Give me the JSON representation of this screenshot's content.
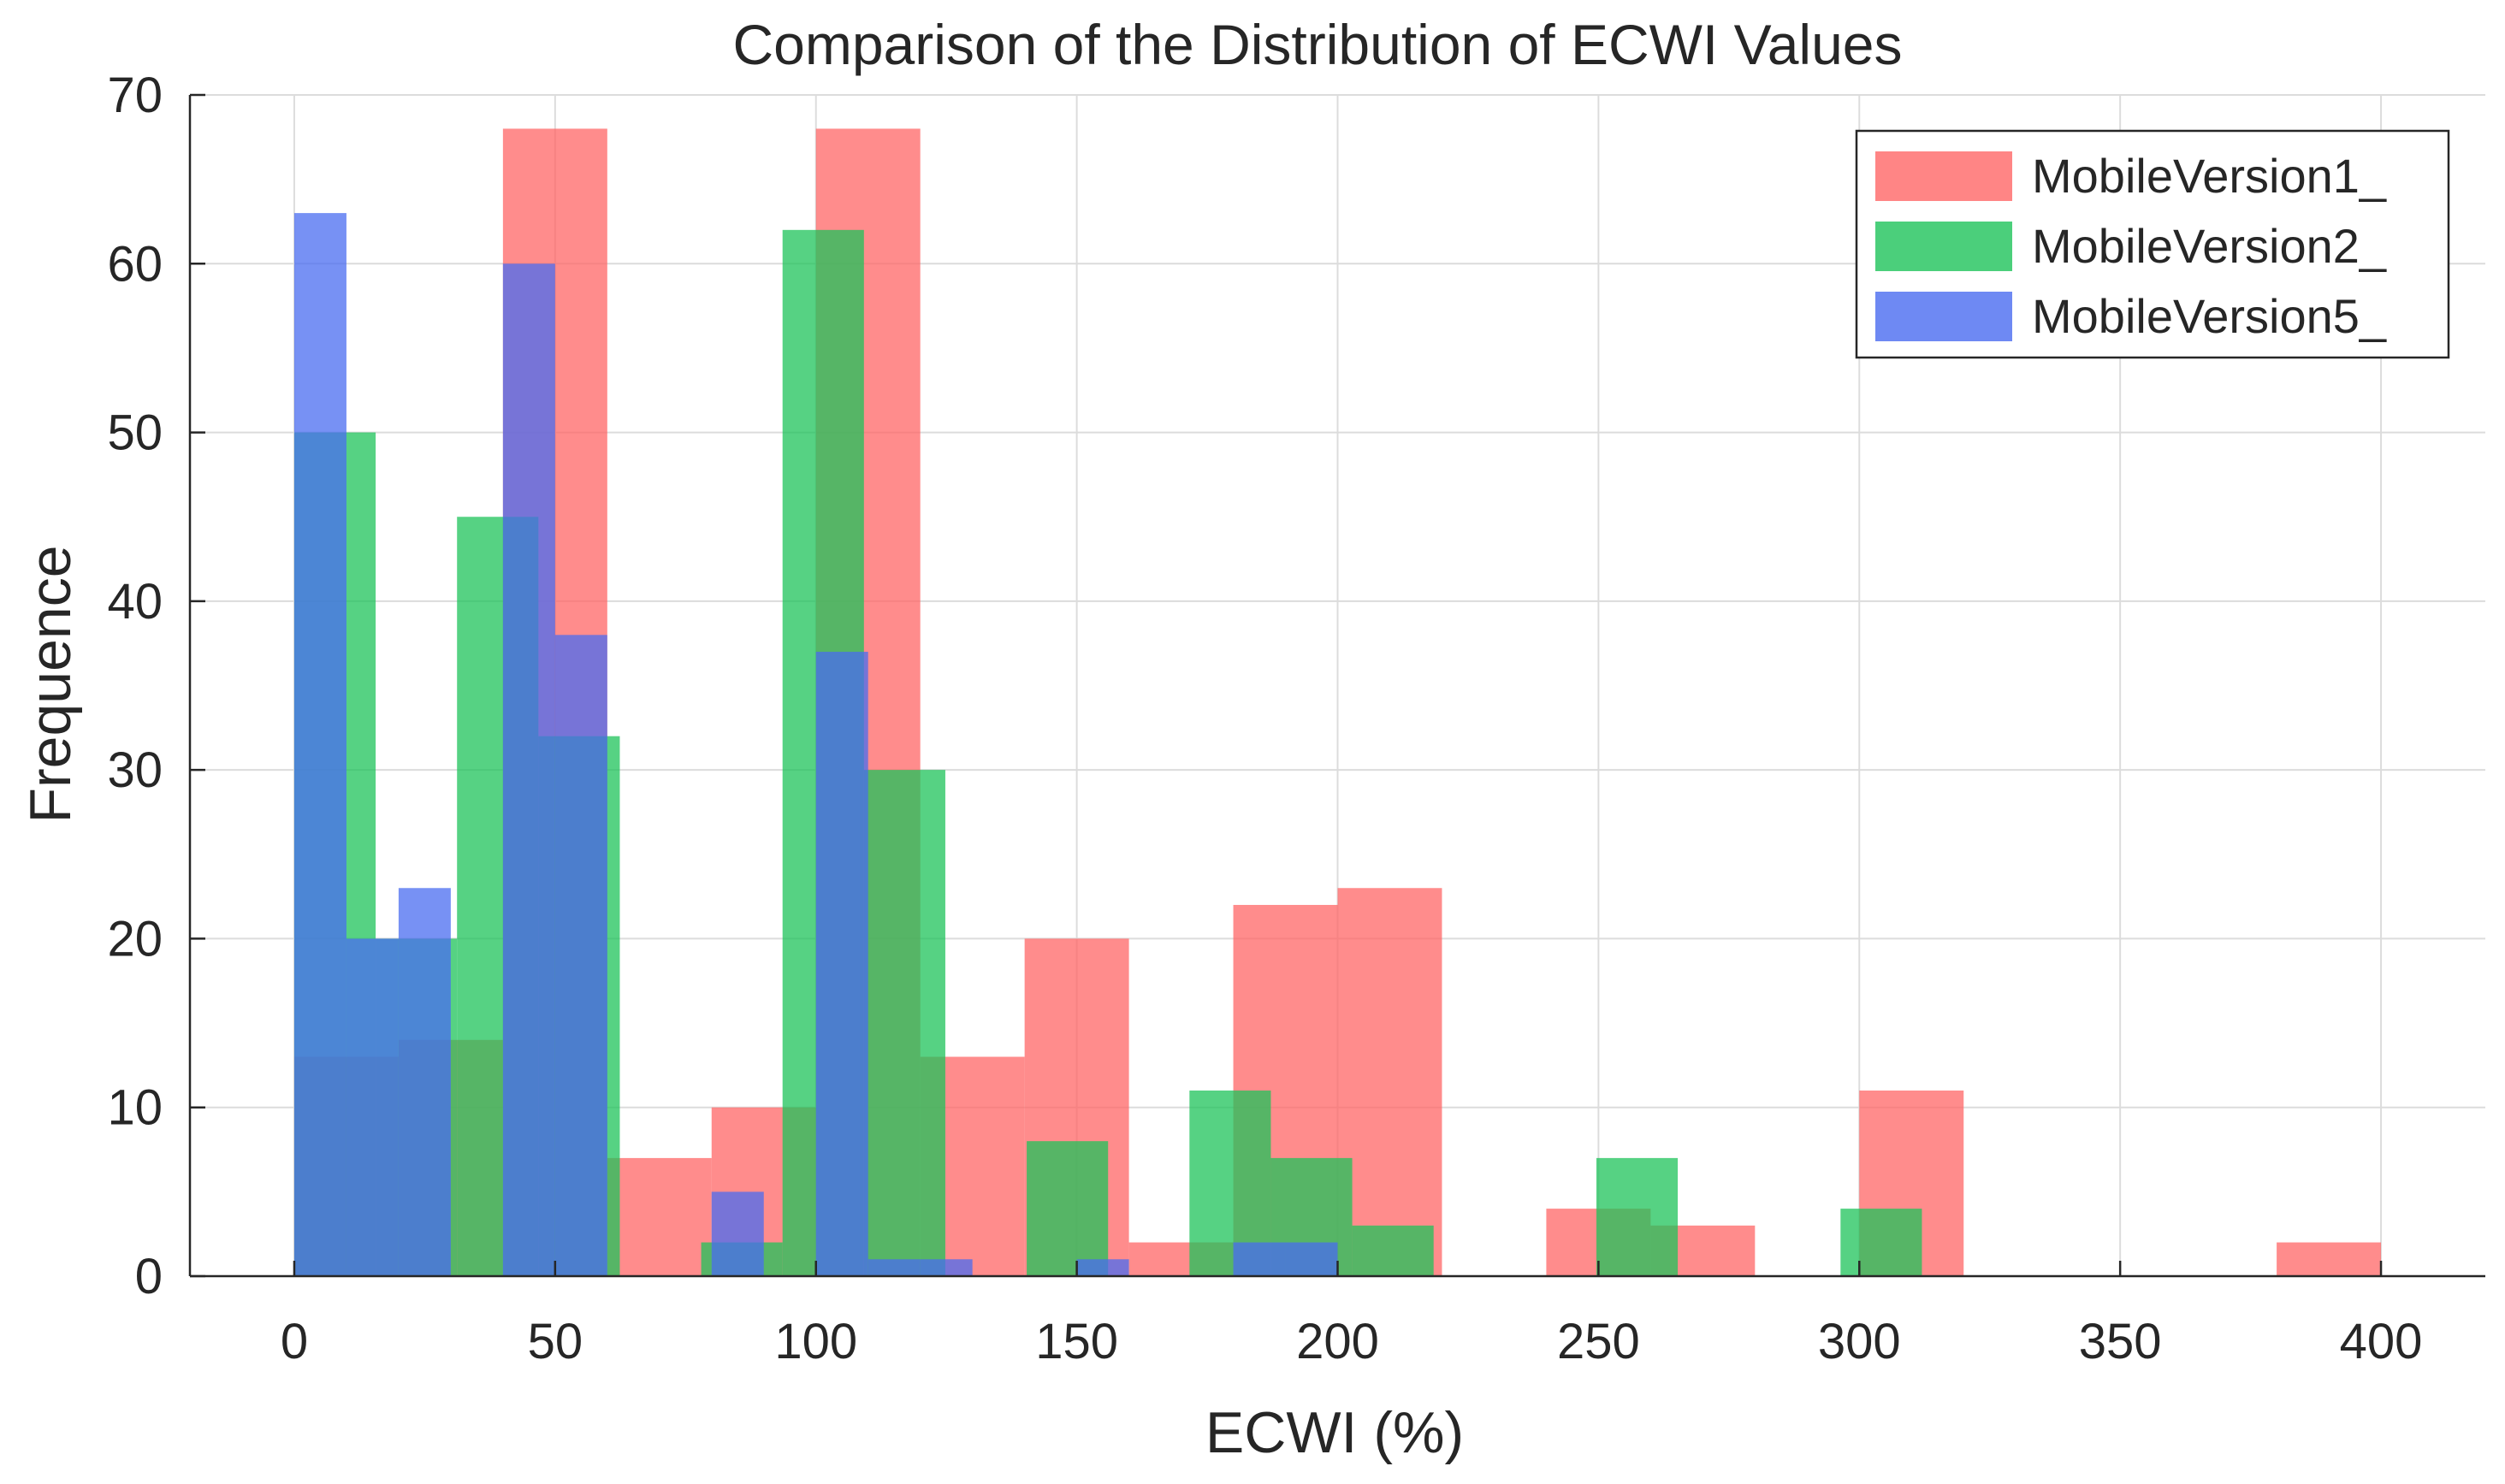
{
  "chart_data": {
    "type": "histogram",
    "title": "Comparison of the Distribution of ECWI Values",
    "xlabel": "ECWI (%)",
    "ylabel": "Frequence",
    "xlim": [
      -20,
      420
    ],
    "ylim": [
      0,
      70
    ],
    "xticks": [
      0,
      50,
      100,
      150,
      200,
      250,
      300,
      350,
      400
    ],
    "yticks": [
      0,
      10,
      20,
      30,
      40,
      50,
      60,
      70
    ],
    "grid": true,
    "legend_position": "top-right",
    "series": [
      {
        "name": "MobileVersion1_",
        "color": "#ff6666",
        "bins": [
          {
            "x0": 0,
            "x1": 20,
            "count": 13
          },
          {
            "x0": 20,
            "x1": 40,
            "count": 14
          },
          {
            "x0": 40,
            "x1": 60,
            "count": 68
          },
          {
            "x0": 60,
            "x1": 80,
            "count": 7
          },
          {
            "x0": 80,
            "x1": 100,
            "count": 10
          },
          {
            "x0": 100,
            "x1": 120,
            "count": 68
          },
          {
            "x0": 120,
            "x1": 140,
            "count": 13
          },
          {
            "x0": 140,
            "x1": 160,
            "count": 20
          },
          {
            "x0": 160,
            "x1": 180,
            "count": 2
          },
          {
            "x0": 180,
            "x1": 200,
            "count": 22
          },
          {
            "x0": 200,
            "x1": 220,
            "count": 23
          },
          {
            "x0": 220,
            "x1": 240,
            "count": 0
          },
          {
            "x0": 240,
            "x1": 260,
            "count": 4
          },
          {
            "x0": 260,
            "x1": 280,
            "count": 3
          },
          {
            "x0": 280,
            "x1": 300,
            "count": 0
          },
          {
            "x0": 300,
            "x1": 320,
            "count": 11
          },
          {
            "x0": 380,
            "x1": 400,
            "count": 2
          }
        ]
      },
      {
        "name": "MobileVersion2_",
        "color": "#1ec35a",
        "bins": [
          {
            "x0": 0,
            "x1": 15.6,
            "count": 50
          },
          {
            "x0": 15.6,
            "x1": 31.2,
            "count": 20
          },
          {
            "x0": 31.2,
            "x1": 46.8,
            "count": 45
          },
          {
            "x0": 46.8,
            "x1": 62.4,
            "count": 32
          },
          {
            "x0": 62.4,
            "x1": 78,
            "count": 0
          },
          {
            "x0": 78,
            "x1": 93.6,
            "count": 2
          },
          {
            "x0": 93.6,
            "x1": 109.2,
            "count": 62
          },
          {
            "x0": 109.2,
            "x1": 124.8,
            "count": 30
          },
          {
            "x0": 124.8,
            "x1": 140.4,
            "count": 0
          },
          {
            "x0": 140.4,
            "x1": 156,
            "count": 8
          },
          {
            "x0": 156,
            "x1": 171.6,
            "count": 0
          },
          {
            "x0": 171.6,
            "x1": 187.2,
            "count": 11
          },
          {
            "x0": 187.2,
            "x1": 202.8,
            "count": 7
          },
          {
            "x0": 202.8,
            "x1": 218.4,
            "count": 3
          },
          {
            "x0": 249.6,
            "x1": 265.2,
            "count": 7
          },
          {
            "x0": 296.4,
            "x1": 312,
            "count": 4
          }
        ]
      },
      {
        "name": "MobileVersion5_",
        "color": "#4a6cf0",
        "bins": [
          {
            "x0": 0,
            "x1": 10,
            "count": 63
          },
          {
            "x0": 10,
            "x1": 20,
            "count": 20
          },
          {
            "x0": 20,
            "x1": 30,
            "count": 23
          },
          {
            "x0": 30,
            "x1": 40,
            "count": 0
          },
          {
            "x0": 40,
            "x1": 50,
            "count": 60
          },
          {
            "x0": 50,
            "x1": 60,
            "count": 38
          },
          {
            "x0": 80,
            "x1": 90,
            "count": 5
          },
          {
            "x0": 100,
            "x1": 110,
            "count": 37
          },
          {
            "x0": 110,
            "x1": 120,
            "count": 1
          },
          {
            "x0": 120,
            "x1": 130,
            "count": 1
          },
          {
            "x0": 150,
            "x1": 160,
            "count": 1
          },
          {
            "x0": 180,
            "x1": 190,
            "count": 2
          },
          {
            "x0": 190,
            "x1": 200,
            "count": 2
          }
        ]
      }
    ]
  }
}
